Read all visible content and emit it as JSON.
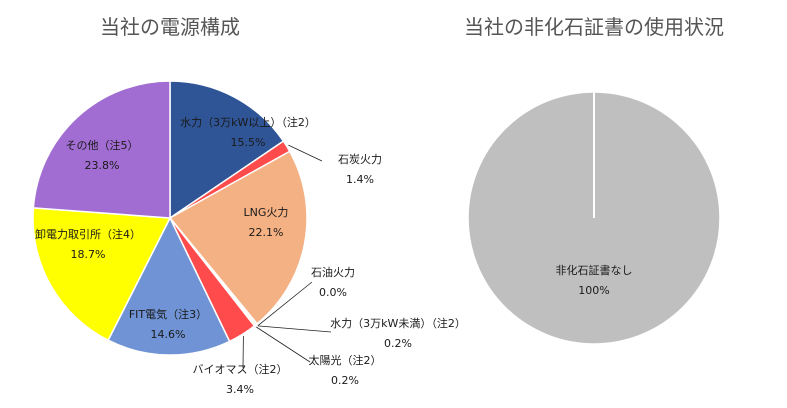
{
  "chart_data": [
    {
      "type": "pie",
      "title": "当社の電源構成",
      "slices": [
        {
          "label": "水力（3万kW以上）（注2）",
          "value_label": "15.5%",
          "value": 15.5,
          "color": "#2f5597"
        },
        {
          "label": "石炭火力",
          "value_label": "1.4%",
          "value": 1.4,
          "color": "#ff4b4b"
        },
        {
          "label": "LNG火力",
          "value_label": "22.1%",
          "value": 22.1,
          "color": "#f4b183"
        },
        {
          "label": "石油火力",
          "value_label": "0.0%",
          "value": 0.0,
          "color": "#7f7f7f"
        },
        {
          "label": "水力（3万kW未満）（注2）",
          "value_label": "0.2%",
          "value": 0.2,
          "color": "#a9d18e"
        },
        {
          "label": "太陽光（注2）",
          "value_label": "0.2%",
          "value": 0.2,
          "color": "#ffc000"
        },
        {
          "label": "バイオマス（注2）",
          "value_label": "3.4%",
          "value": 3.4,
          "color": "#ff4b4b"
        },
        {
          "label": "FIT電気（注3）",
          "value_label": "14.6%",
          "value": 14.6,
          "color": "#6f93d4"
        },
        {
          "label": "卸電力取引所（注4）",
          "value_label": "18.7%",
          "value": 18.7,
          "color": "#ffff00"
        },
        {
          "label": "その他（注5）",
          "value_label": "23.8%",
          "value": 23.8,
          "color": "#a26dd2"
        }
      ]
    },
    {
      "type": "pie",
      "title": "当社の非化石証書の使用状況",
      "slices": [
        {
          "label": "非化石証書なし",
          "value_label": "100%",
          "value": 100,
          "color": "#bfbfbf"
        }
      ]
    }
  ]
}
